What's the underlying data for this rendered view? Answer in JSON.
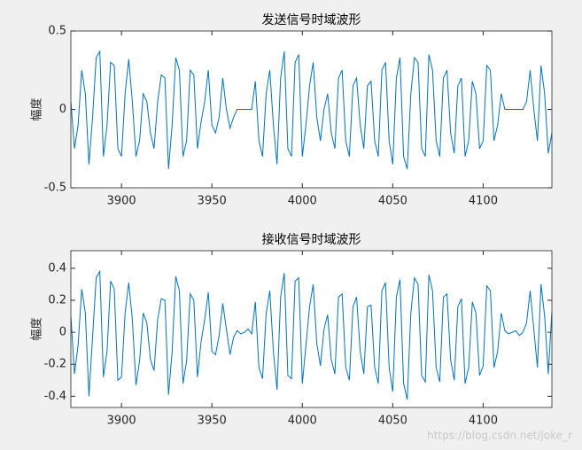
{
  "chart_data": [
    {
      "type": "line",
      "title": "发送信号时域波形",
      "y_label": "幅度",
      "color": "#0072bd",
      "x": [
        3872,
        3874,
        3876,
        3878,
        3880,
        3882,
        3884,
        3886,
        3888,
        3890,
        3892,
        3894,
        3896,
        3898,
        3900,
        3902,
        3904,
        3906,
        3908,
        3910,
        3912,
        3914,
        3916,
        3918,
        3920,
        3922,
        3924,
        3926,
        3928,
        3930,
        3932,
        3934,
        3936,
        3938,
        3940,
        3942,
        3944,
        3946,
        3948,
        3950,
        3952,
        3954,
        3956,
        3958,
        3960,
        3962,
        3964,
        3966,
        3968,
        3970,
        3972,
        3974,
        3976,
        3978,
        3980,
        3982,
        3984,
        3986,
        3988,
        3990,
        3992,
        3994,
        3996,
        3998,
        4000,
        4002,
        4004,
        4006,
        4008,
        4010,
        4012,
        4014,
        4016,
        4018,
        4020,
        4022,
        4024,
        4026,
        4028,
        4030,
        4032,
        4034,
        4036,
        4038,
        4040,
        4042,
        4044,
        4046,
        4048,
        4050,
        4052,
        4054,
        4056,
        4058,
        4060,
        4062,
        4064,
        4066,
        4068,
        4070,
        4072,
        4074,
        4076,
        4078,
        4080,
        4082,
        4084,
        4086,
        4088,
        4090,
        4092,
        4094,
        4096,
        4098,
        4100,
        4102,
        4104,
        4106,
        4108,
        4110,
        4112,
        4114,
        4116,
        4118,
        4120,
        4122,
        4124,
        4126,
        4128,
        4130,
        4132,
        4134,
        4136,
        4138
      ],
      "values": [
        0.05,
        -0.25,
        -0.1,
        0.25,
        0.1,
        -0.35,
        -0.05,
        0.33,
        0.37,
        -0.3,
        -0.1,
        0.3,
        0.28,
        -0.25,
        -0.3,
        0.1,
        0.32,
        0.05,
        -0.3,
        -0.2,
        0.1,
        0.05,
        -0.15,
        -0.25,
        0.05,
        0.22,
        0.2,
        -0.38,
        -0.1,
        0.33,
        0.25,
        -0.3,
        -0.2,
        0.25,
        0.22,
        -0.25,
        -0.08,
        0.05,
        0.25,
        -0.1,
        -0.15,
        -0.05,
        0.2,
        0.0,
        -0.12,
        -0.05,
        0,
        0,
        0,
        0,
        0,
        0.18,
        -0.2,
        -0.3,
        0.1,
        0.25,
        -0.1,
        -0.35,
        0.2,
        0.37,
        -0.25,
        -0.3,
        0.3,
        0.35,
        -0.3,
        -0.1,
        0.15,
        0.3,
        -0.05,
        -0.2,
        0.0,
        0.1,
        -0.15,
        -0.25,
        0.2,
        0.25,
        -0.2,
        -0.3,
        0.15,
        0.2,
        -0.1,
        -0.25,
        0.15,
        0.18,
        -0.2,
        -0.3,
        0.25,
        0.3,
        -0.2,
        -0.35,
        0.2,
        0.33,
        -0.3,
        -0.38,
        0.1,
        0.33,
        0.3,
        -0.25,
        -0.3,
        0.35,
        0.25,
        -0.2,
        -0.3,
        0.2,
        0.25,
        -0.15,
        -0.28,
        0.15,
        0.2,
        -0.3,
        -0.2,
        0.18,
        0.1,
        -0.25,
        -0.2,
        0.28,
        0.25,
        -0.2,
        -0.1,
        0.1,
        0,
        0,
        0,
        0,
        0,
        0,
        0.05,
        0.25,
        0.0,
        -0.2,
        0.28,
        0.1,
        -0.28,
        -0.15
      ],
      "xlim": [
        3872,
        4138
      ],
      "ylim": [
        -0.5,
        0.5
      ],
      "xticks": [
        3900,
        3950,
        4000,
        4050,
        4100
      ],
      "yticks": [
        -0.5,
        0,
        0.5
      ]
    },
    {
      "type": "line",
      "title": "接收信号时域波形",
      "y_label": "幅度",
      "color": "#0072bd",
      "x": [
        3872,
        3874,
        3876,
        3878,
        3880,
        3882,
        3884,
        3886,
        3888,
        3890,
        3892,
        3894,
        3896,
        3898,
        3900,
        3902,
        3904,
        3906,
        3908,
        3910,
        3912,
        3914,
        3916,
        3918,
        3920,
        3922,
        3924,
        3926,
        3928,
        3930,
        3932,
        3934,
        3936,
        3938,
        3940,
        3942,
        3944,
        3946,
        3948,
        3950,
        3952,
        3954,
        3956,
        3958,
        3960,
        3962,
        3964,
        3966,
        3968,
        3970,
        3972,
        3974,
        3976,
        3978,
        3980,
        3982,
        3984,
        3986,
        3988,
        3990,
        3992,
        3994,
        3996,
        3998,
        4000,
        4002,
        4004,
        4006,
        4008,
        4010,
        4012,
        4014,
        4016,
        4018,
        4020,
        4022,
        4024,
        4026,
        4028,
        4030,
        4032,
        4034,
        4036,
        4038,
        4040,
        4042,
        4044,
        4046,
        4048,
        4050,
        4052,
        4054,
        4056,
        4058,
        4060,
        4062,
        4064,
        4066,
        4068,
        4070,
        4072,
        4074,
        4076,
        4078,
        4080,
        4082,
        4084,
        4086,
        4088,
        4090,
        4092,
        4094,
        4096,
        4098,
        4100,
        4102,
        4104,
        4106,
        4108,
        4110,
        4112,
        4114,
        4116,
        4118,
        4120,
        4122,
        4124,
        4126,
        4128,
        4130,
        4132,
        4134,
        4136,
        4138
      ],
      "values": [
        0.1,
        -0.26,
        -0.08,
        0.27,
        0.12,
        -0.4,
        -0.03,
        0.34,
        0.38,
        -0.28,
        -0.12,
        0.32,
        0.27,
        -0.3,
        -0.28,
        0.12,
        0.31,
        0.08,
        -0.33,
        -0.18,
        0.12,
        0.06,
        -0.17,
        -0.24,
        0.08,
        0.21,
        0.2,
        -0.39,
        -0.12,
        0.35,
        0.26,
        -0.32,
        -0.18,
        0.24,
        0.2,
        -0.28,
        -0.06,
        0.08,
        0.25,
        -0.12,
        -0.14,
        -0.02,
        0.18,
        0.02,
        -0.14,
        -0.03,
        0.01,
        -0.01,
        0.0,
        0.02,
        -0.01,
        0.19,
        -0.22,
        -0.29,
        0.12,
        0.26,
        -0.12,
        -0.36,
        0.22,
        0.37,
        -0.27,
        -0.29,
        0.32,
        0.34,
        -0.32,
        -0.08,
        0.16,
        0.3,
        -0.07,
        -0.21,
        0.02,
        0.11,
        -0.17,
        -0.26,
        0.22,
        0.24,
        -0.22,
        -0.3,
        0.16,
        0.22,
        -0.12,
        -0.26,
        0.16,
        0.17,
        -0.22,
        -0.32,
        0.26,
        0.31,
        -0.22,
        -0.37,
        0.22,
        0.33,
        -0.32,
        -0.42,
        0.12,
        0.34,
        0.3,
        -0.27,
        -0.31,
        0.36,
        0.26,
        -0.22,
        -0.31,
        0.22,
        0.24,
        -0.17,
        -0.3,
        0.16,
        0.21,
        -0.32,
        -0.22,
        0.19,
        0.12,
        -0.27,
        -0.21,
        0.29,
        0.26,
        -0.22,
        -0.12,
        0.12,
        0.01,
        -0.01,
        0.0,
        0.01,
        -0.02,
        0.0,
        0.06,
        0.26,
        0.02,
        -0.22,
        0.3,
        0.1,
        -0.26,
        0.13
      ],
      "xlim": [
        3872,
        4138
      ],
      "ylim": [
        -0.47,
        0.51
      ],
      "xticks": [
        3900,
        3950,
        4000,
        4050,
        4100
      ],
      "yticks": [
        -0.4,
        -0.2,
        0,
        0.2,
        0.4
      ]
    }
  ],
  "watermark": "https://blog.csdn.net/joke_r"
}
